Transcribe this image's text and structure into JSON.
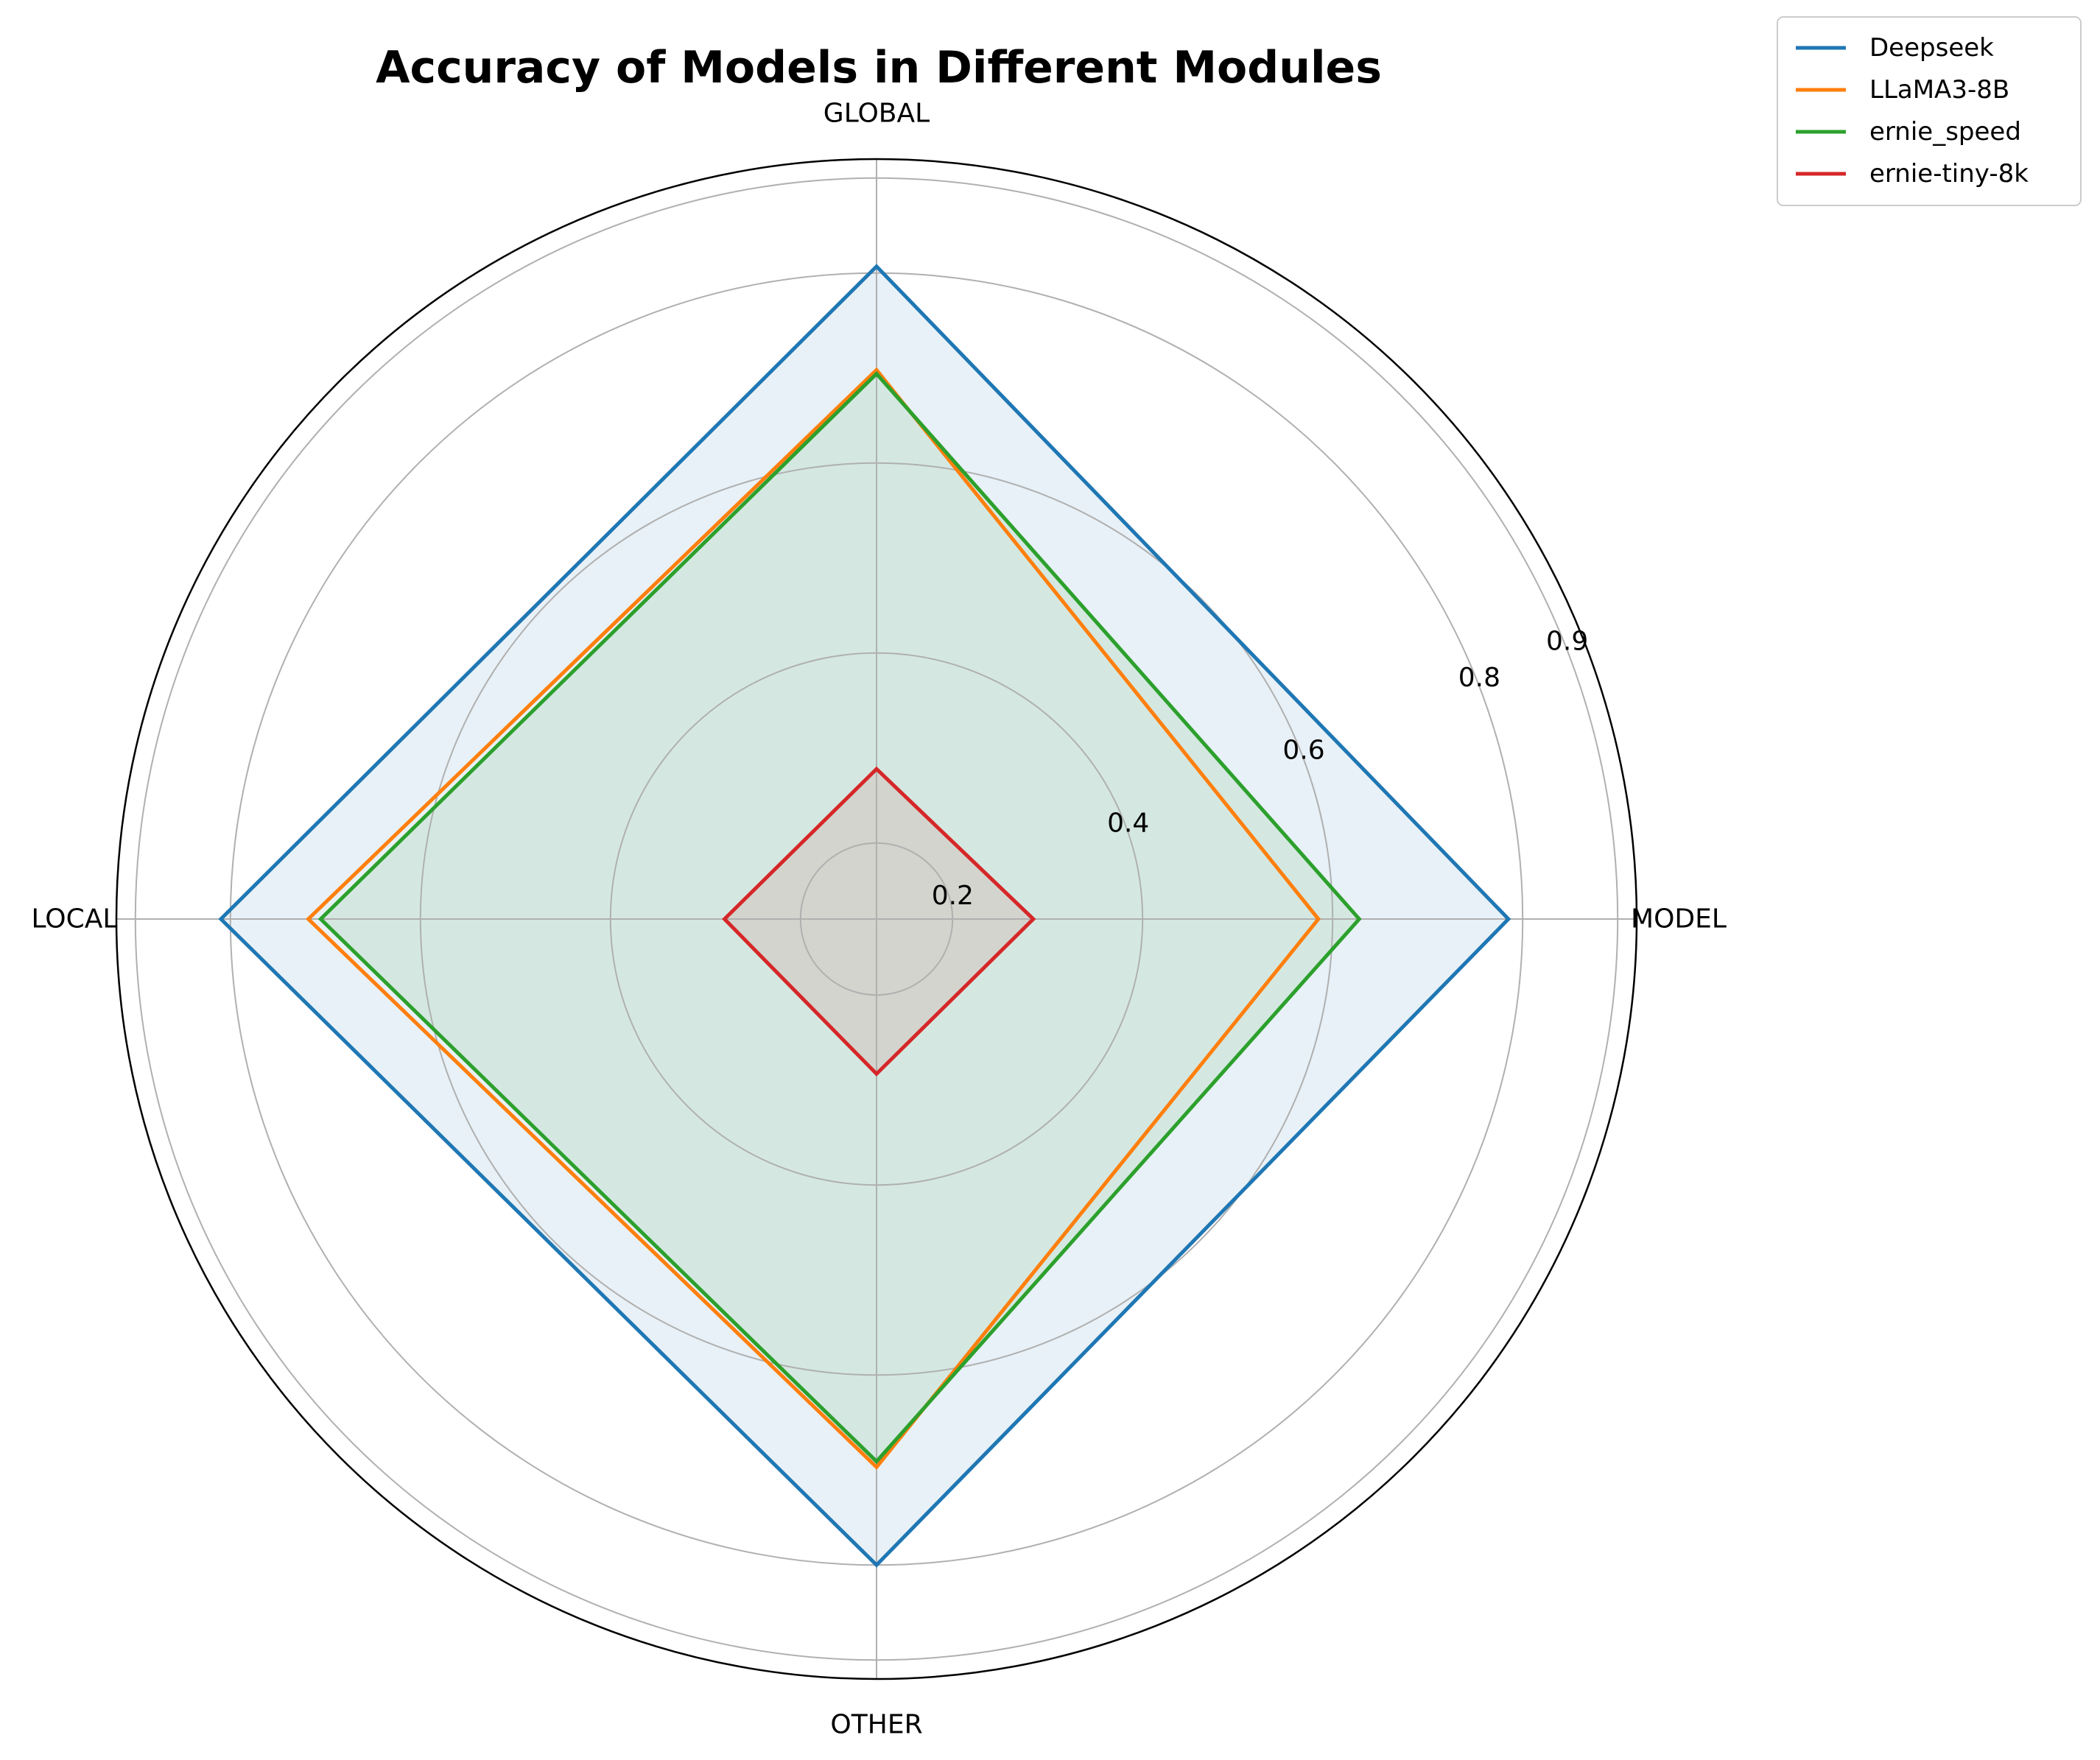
{
  "chart_data": {
    "type": "radar",
    "title": "Accuracy of Models in Different Modules",
    "axes": [
      "MODEL",
      "GLOBAL",
      "LOCAL",
      "OTHER"
    ],
    "radial_ticks": [
      0.2,
      0.4,
      0.6,
      0.8,
      0.9
    ],
    "rlim": [
      0.12,
      0.92
    ],
    "grid": true,
    "legend_position": "top-right",
    "series": [
      {
        "name": "Deepseek",
        "color": "#1f77b4",
        "fill": true,
        "values": [
          0.785,
          0.807,
          0.81,
          0.8
        ]
      },
      {
        "name": "LLaMA3-8B",
        "color": "#ff7f0e",
        "fill": false,
        "values": [
          0.585,
          0.698,
          0.718,
          0.697
        ]
      },
      {
        "name": "ernie_speed",
        "color": "#2ca02c",
        "fill": true,
        "values": [
          0.628,
          0.694,
          0.705,
          0.691
        ]
      },
      {
        "name": "ernie-tiny-8k",
        "color": "#d62728",
        "fill": true,
        "values": [
          0.285,
          0.278,
          0.28,
          0.283
        ]
      }
    ]
  }
}
